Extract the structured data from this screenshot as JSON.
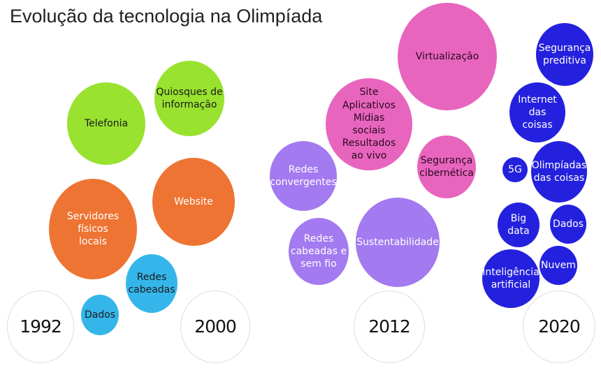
{
  "title": "Evolução da tecnologia na Olimpíada",
  "colors": {
    "1992": "#ee7433",
    "2000": "#99e22f",
    "2012": "#a37af0",
    "2012_alt": "#e865be",
    "2020": "#2421de",
    "cabling": "#35b6ea"
  },
  "years": [
    "1992",
    "2000",
    "2012",
    "2020"
  ],
  "groups": {
    "g1992_2000": {
      "telefonia": "Telefonia",
      "quiosques": "Quiosques de\ninformação",
      "website": "Website",
      "servidores": "Servidores\nfísicos\nlocais",
      "redes_cabeadas": "Redes\ncabeadas",
      "dados": "Dados"
    },
    "g2012": {
      "virtualizacao": "Virtualização",
      "site_apps": "Site\nAplicativos\nMídias\nsociais\nResultados\nao vivo",
      "seguranca_ciber": "Segurança\ncibernética",
      "redes_convergentes": "Redes\nconvergentes",
      "sustentabilidade": "Sustentabilidade",
      "redes_cabeadas_sem_fio": "Redes\ncabeadas e\nsem fio"
    },
    "g2020": {
      "seguranca_preditiva": "Segurança\npreditiva",
      "internet_coisas": "Internet\ndas\ncoisas",
      "5g": "5G",
      "olimpiadas_coisas": "Olimpíadas\ndas coisas",
      "big_data": "Big\ndata",
      "dados": "Dados",
      "nuvem": "Nuvem",
      "ia": "Inteligência\nartificial"
    }
  }
}
